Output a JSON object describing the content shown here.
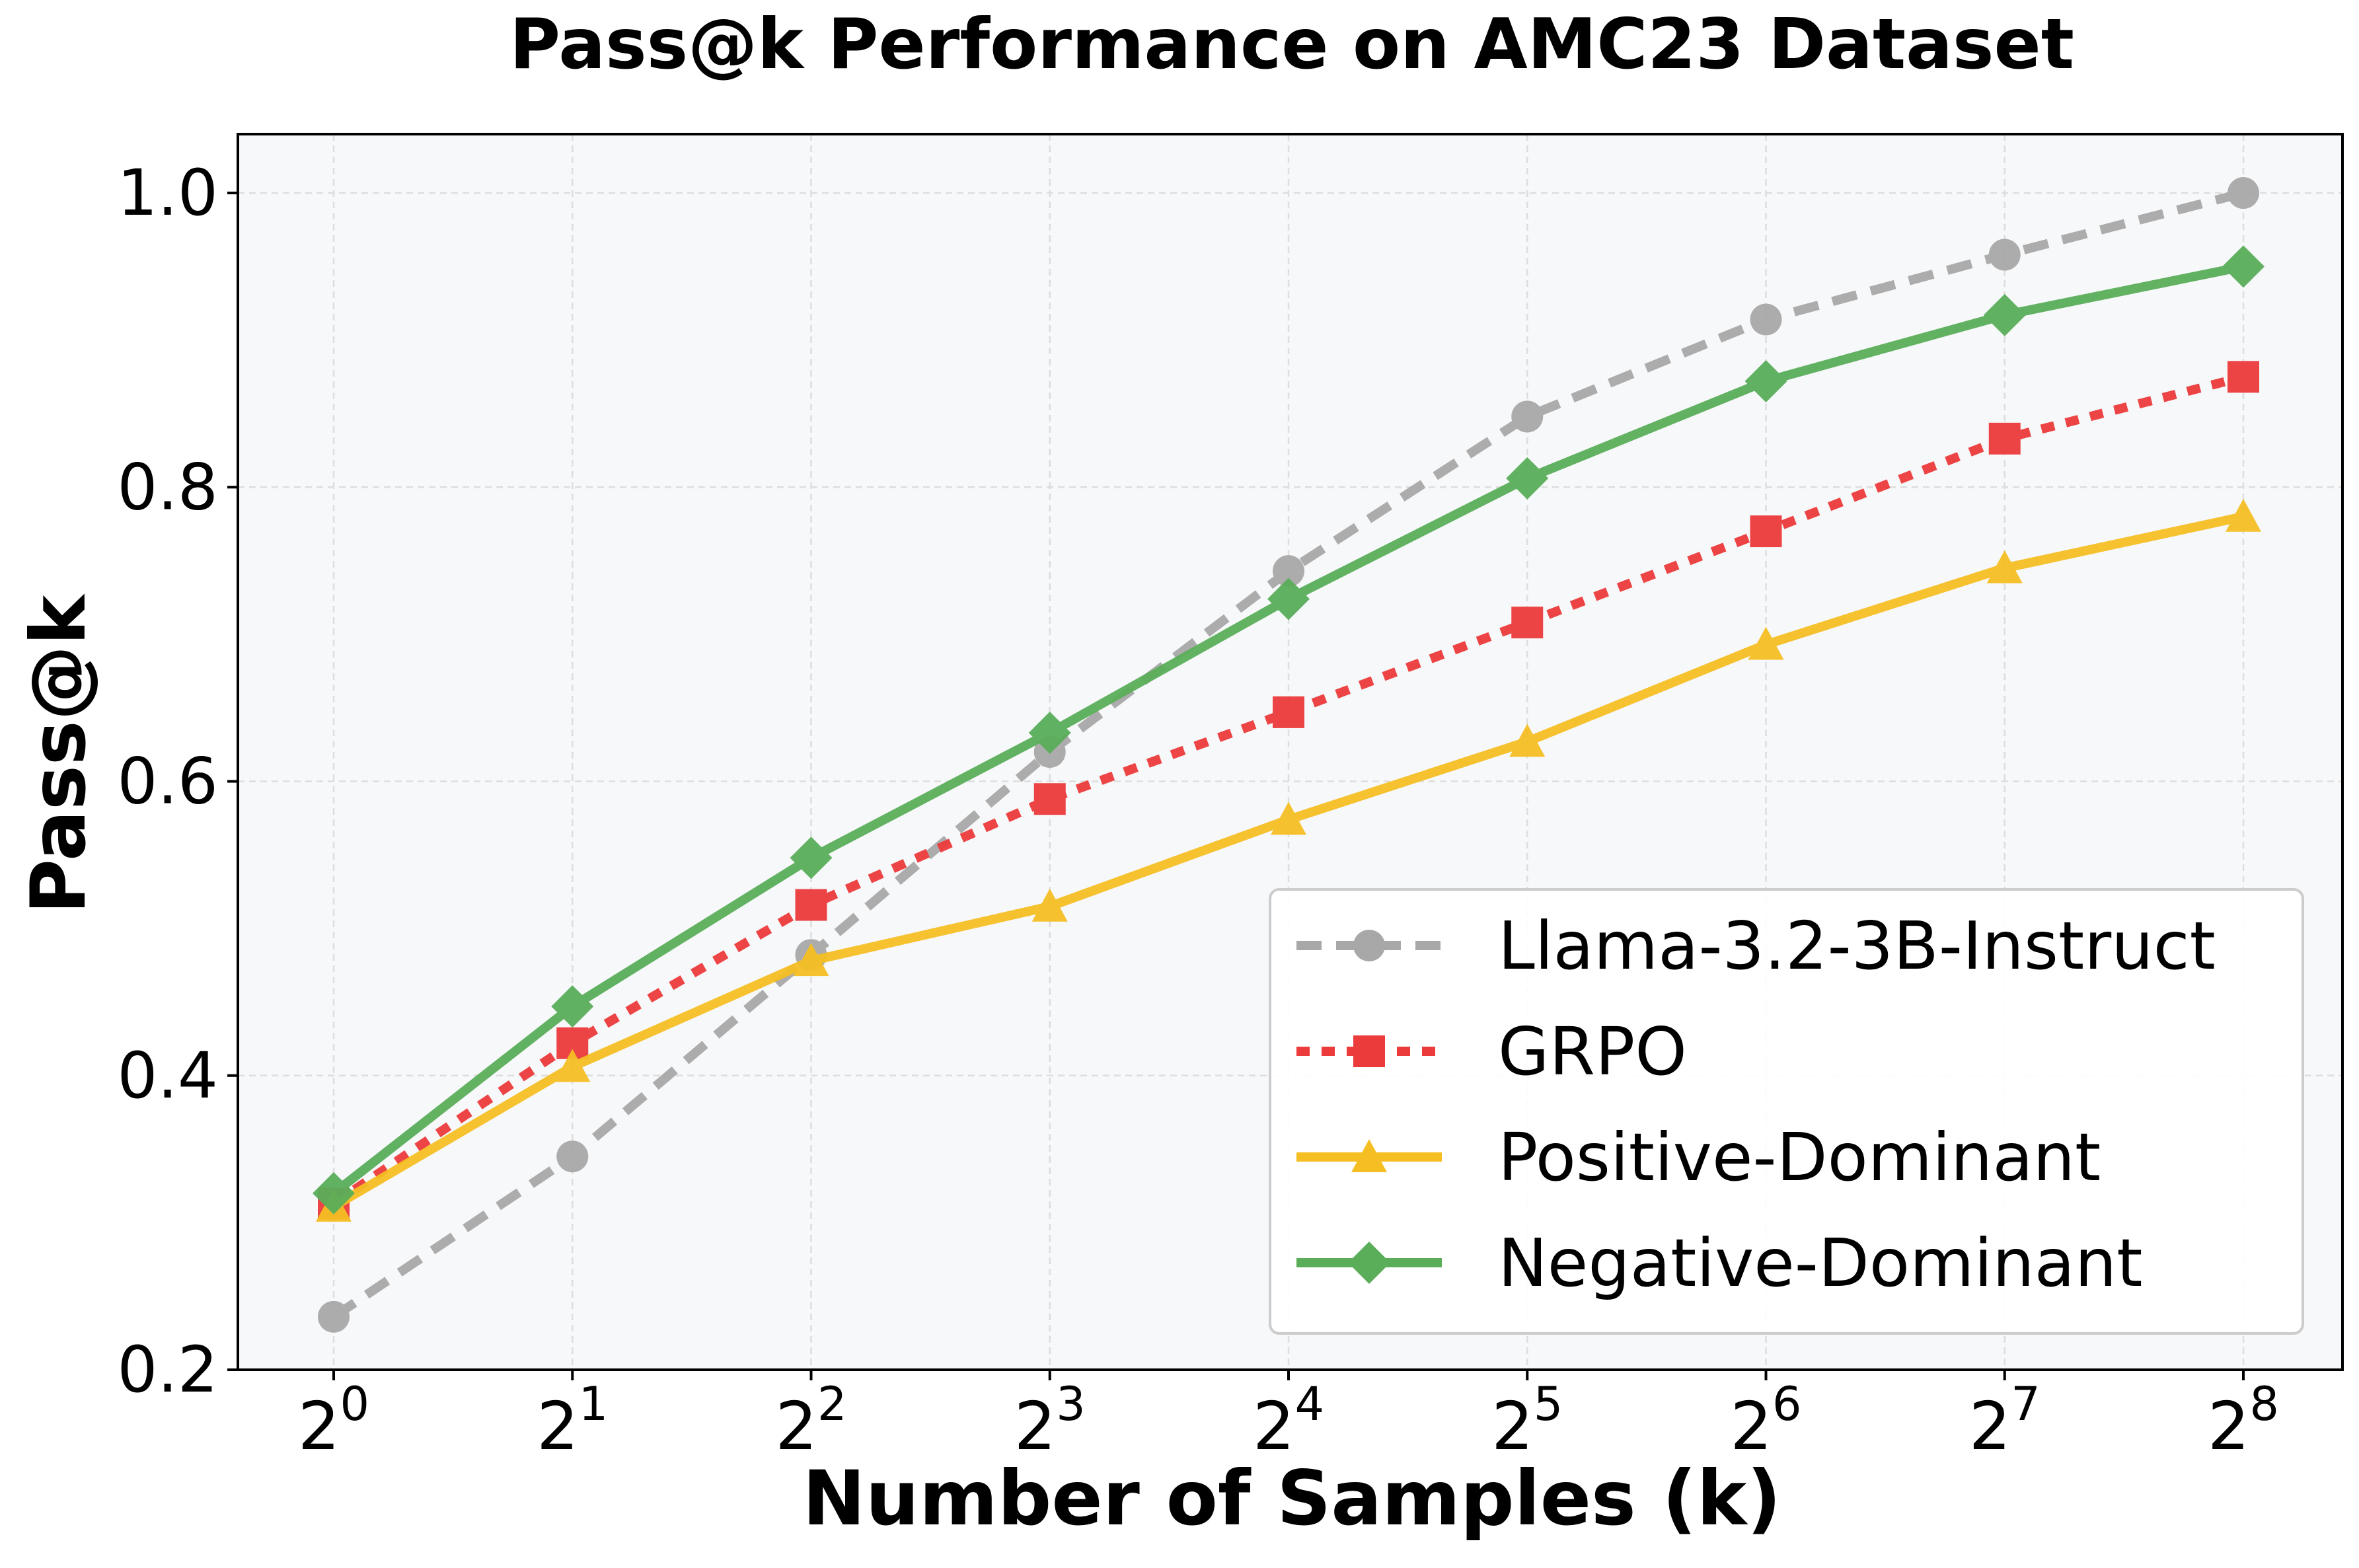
{
  "chart_data": {
    "type": "line",
    "title": "Pass@k Performance on AMC23 Dataset",
    "xlabel": "Number of Samples (k)",
    "ylabel": "Pass@k",
    "x_ticks": [
      {
        "base": "2",
        "exp": "0"
      },
      {
        "base": "2",
        "exp": "1"
      },
      {
        "base": "2",
        "exp": "2"
      },
      {
        "base": "2",
        "exp": "3"
      },
      {
        "base": "2",
        "exp": "4"
      },
      {
        "base": "2",
        "exp": "5"
      },
      {
        "base": "2",
        "exp": "6"
      },
      {
        "base": "2",
        "exp": "7"
      },
      {
        "base": "2",
        "exp": "8"
      }
    ],
    "x": [
      1,
      2,
      4,
      8,
      16,
      32,
      64,
      128,
      256
    ],
    "x_log_base": 2,
    "ylim": [
      0.2,
      1.04
    ],
    "y_ticks": [
      "0.2",
      "0.4",
      "0.6",
      "0.8",
      "1.0"
    ],
    "y_tick_values": [
      0.2,
      0.4,
      0.6,
      0.8,
      1.0
    ],
    "grid": true,
    "legend_position": "lower-right",
    "series": [
      {
        "name": "Llama-3.2-3B-Instruct",
        "color": "#a8a8a8",
        "dash": "dashed",
        "marker": "circle",
        "values": [
          0.236,
          0.345,
          0.482,
          0.62,
          0.743,
          0.848,
          0.914,
          0.958,
          1.0
        ]
      },
      {
        "name": "GRPO",
        "color": "#ec3b3b",
        "dash": "dotted",
        "marker": "square",
        "values": [
          0.313,
          0.422,
          0.516,
          0.588,
          0.647,
          0.708,
          0.77,
          0.833,
          0.875
        ]
      },
      {
        "name": "Positive-Dominant",
        "color": "#f5bf24",
        "dash": "solid",
        "marker": "triangle",
        "values": [
          0.311,
          0.406,
          0.478,
          0.515,
          0.574,
          0.627,
          0.693,
          0.745,
          0.78
        ]
      },
      {
        "name": "Negative-Dominant",
        "color": "#5aae5a",
        "dash": "solid",
        "marker": "diamond",
        "values": [
          0.32,
          0.447,
          0.548,
          0.633,
          0.724,
          0.806,
          0.872,
          0.917,
          0.95
        ]
      }
    ]
  }
}
